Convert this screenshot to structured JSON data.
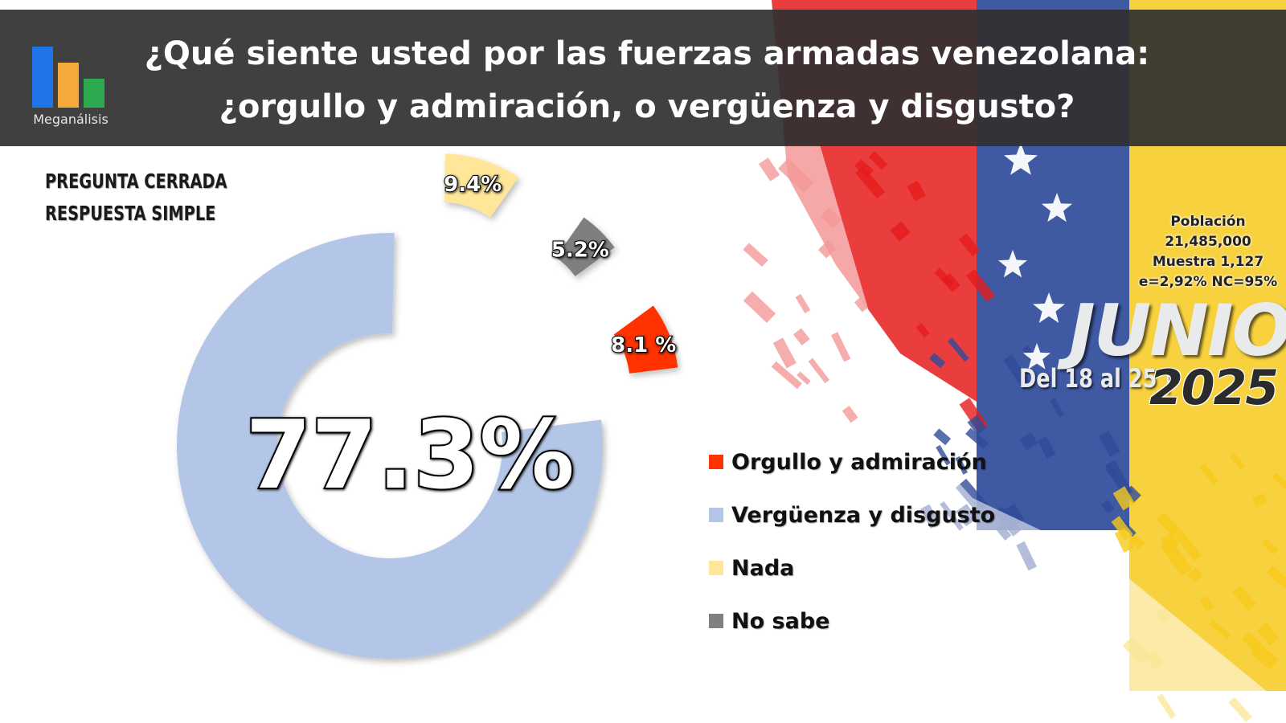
{
  "brand": {
    "name": "Meganálisis",
    "colors": [
      "#1f74e8",
      "#f4a938",
      "#2daa4f"
    ]
  },
  "title": {
    "line1": "¿Qué siente usted por las fuerzas armadas venezolana:",
    "line2": "¿orgullo y admiración, o vergüenza y disgusto?"
  },
  "question_type": {
    "line1": "PREGUNTA CERRADA",
    "line2": "RESPUESTA SIMPLE"
  },
  "survey": {
    "population_label": "Población",
    "population": "21,485,000",
    "sample": "Muestra 1,127",
    "error": "e=2,92%  NC=95%",
    "month": "JUNIO",
    "dates": "Del 18 al 25 |",
    "year": "2025"
  },
  "background": {
    "flag_colors": [
      "#e61b1b",
      "#2f4b9a",
      "#f6c91c"
    ]
  },
  "chart_data": {
    "type": "pie",
    "style": "exploded donut",
    "series": [
      {
        "name": "Orgullo y admiración",
        "value": 8.1,
        "label": "8.1 %",
        "color": "#ff3300"
      },
      {
        "name": "Vergüenza y disgusto",
        "value": 77.3,
        "label": "77.3%",
        "color": "#b4c6e7"
      },
      {
        "name": "Nada",
        "value": 9.4,
        "label": "9.4%",
        "color": "#ffe699"
      },
      {
        "name": "No sabe",
        "value": 5.2,
        "label": "5.2%",
        "color": "#7f7f7f"
      }
    ],
    "legend_position": "right"
  }
}
